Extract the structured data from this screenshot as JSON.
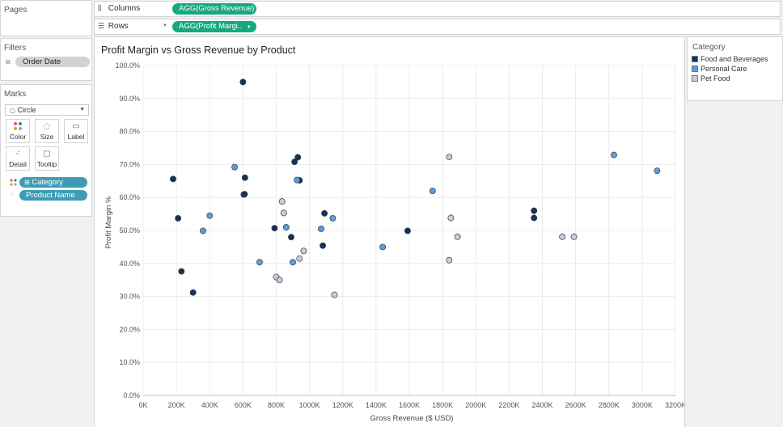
{
  "pages": {
    "title": "Pages"
  },
  "filters": {
    "title": "Filters",
    "pills": [
      "Order Date"
    ]
  },
  "marks": {
    "title": "Marks",
    "type": "Circle",
    "buttons": [
      "Color",
      "Size",
      "Label",
      "Detail",
      "Tooltip"
    ],
    "fields": [
      "Category",
      "Product Name"
    ]
  },
  "shelves": {
    "columns_label": "Columns",
    "columns_pill": "AGG(Gross Revenue)",
    "rows_label": "Rows",
    "rows_pill": "AGG(Profit Margi.."
  },
  "legend": {
    "title": "Category",
    "items": [
      {
        "label": "Food and Beverages",
        "color": "#14325c"
      },
      {
        "label": "Personal Care",
        "color": "#5b9ddd"
      },
      {
        "label": "Pet Food",
        "color": "#c6ccdc"
      }
    ]
  },
  "chart_data": {
    "type": "scatter",
    "title": "Profit Margin vs Gross Revenue by Product",
    "xlabel": "Gross Revenue ($ USD)",
    "ylabel": "Profit Margin %",
    "xlim": [
      0,
      3200000
    ],
    "ylim": [
      0,
      100
    ],
    "x_ticks": [
      "0K",
      "200K",
      "400K",
      "600K",
      "800K",
      "1000K",
      "1200K",
      "1400K",
      "1600K",
      "1800K",
      "2000K",
      "2200K",
      "2400K",
      "2600K",
      "2800K",
      "3000K",
      "3200K"
    ],
    "y_ticks": [
      "0.0%",
      "10.0%",
      "20.0%",
      "30.0%",
      "40.0%",
      "50.0%",
      "60.0%",
      "70.0%",
      "80.0%",
      "90.0%",
      "100.0%"
    ],
    "grid": true,
    "legend_position": "right",
    "series": [
      {
        "name": "Food and Beverages",
        "color": "#14325c",
        "points": [
          [
            180000,
            65.6
          ],
          [
            210000,
            53.7
          ],
          [
            230000,
            37.6
          ],
          [
            300000,
            31.2
          ],
          [
            600000,
            95.0
          ],
          [
            605000,
            60.9
          ],
          [
            610000,
            61.0
          ],
          [
            612000,
            66.0
          ],
          [
            790000,
            50.7
          ],
          [
            890000,
            48.0
          ],
          [
            910000,
            70.8
          ],
          [
            930000,
            72.2
          ],
          [
            940000,
            65.2
          ],
          [
            1080000,
            45.4
          ],
          [
            1090000,
            55.2
          ],
          [
            1590000,
            49.9
          ],
          [
            2350000,
            56.0
          ],
          [
            2350000,
            53.8
          ]
        ]
      },
      {
        "name": "Personal Care",
        "color": "#5b9ddd",
        "points": [
          [
            360000,
            49.9
          ],
          [
            400000,
            54.5
          ],
          [
            550000,
            69.2
          ],
          [
            700000,
            40.4
          ],
          [
            860000,
            51.0
          ],
          [
            900000,
            40.4
          ],
          [
            925000,
            65.3
          ],
          [
            1070000,
            50.5
          ],
          [
            1140000,
            53.7
          ],
          [
            1440000,
            45.0
          ],
          [
            1740000,
            62.0
          ],
          [
            2830000,
            72.9
          ],
          [
            3090000,
            68.1
          ]
        ]
      },
      {
        "name": "Pet Food",
        "color": "#c6ccdc",
        "points": [
          [
            800000,
            35.9
          ],
          [
            820000,
            35.0
          ],
          [
            835000,
            58.8
          ],
          [
            845000,
            55.3
          ],
          [
            940000,
            41.5
          ],
          [
            965000,
            43.8
          ],
          [
            1150000,
            30.5
          ],
          [
            1840000,
            72.3
          ],
          [
            1850000,
            53.8
          ],
          [
            1840000,
            41.0
          ],
          [
            1890000,
            48.1
          ],
          [
            2520000,
            48.1
          ],
          [
            2590000,
            48.1
          ]
        ]
      }
    ]
  }
}
